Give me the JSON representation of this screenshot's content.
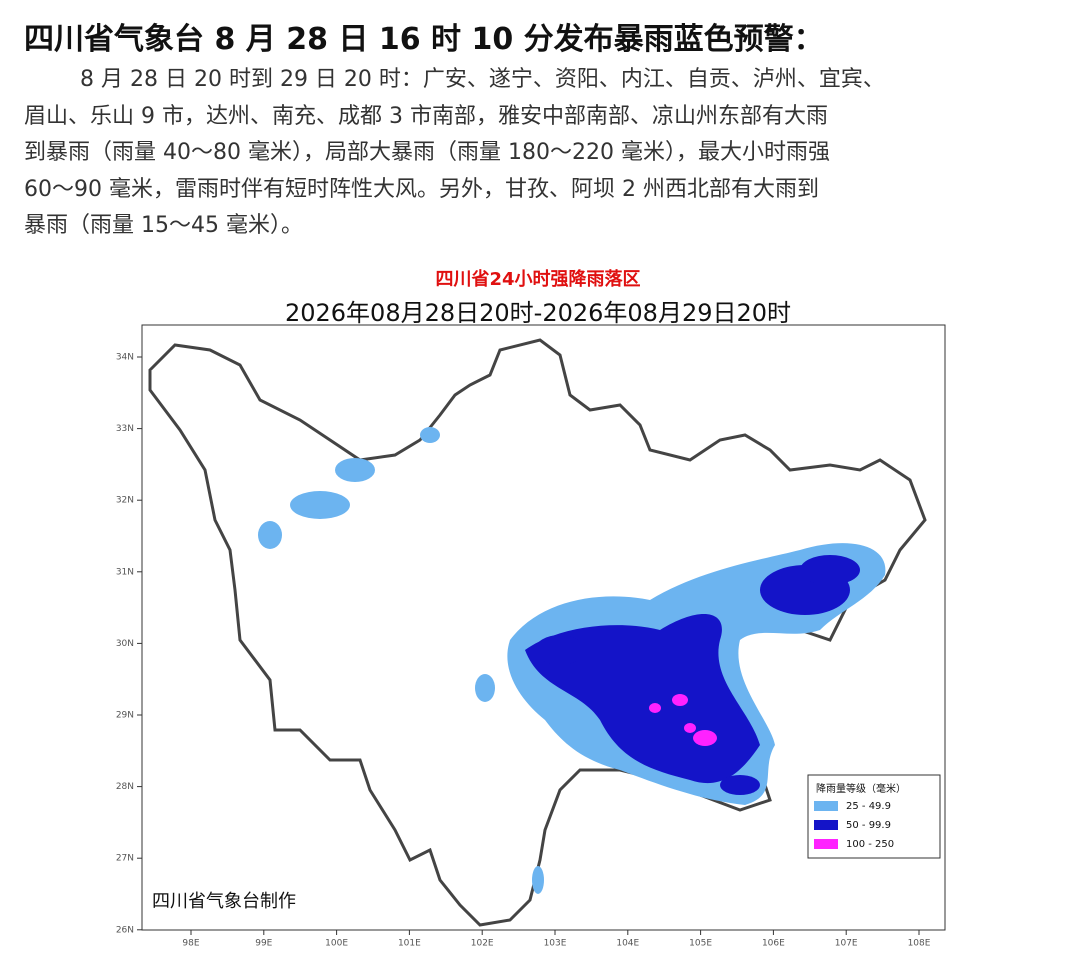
{
  "header": {
    "title": "四川省气象台 8 月 28 日 16 时 10 分发布暴雨蓝色预警："
  },
  "body": {
    "lines": [
      "8 月 28 日 20 时到 29 日 20 时：广安、遂宁、资阳、内江、自贡、泸州、宜宾、",
      "眉山、乐山 9 市，达州、南充、成都 3 市南部，雅安中部南部、凉山州东部有大雨",
      "到暴雨（雨量 40～80 毫米），局部大暴雨（雨量 180～220 毫米），最大小时雨强",
      "60～90 毫米，雷雨时伴有短时阵性大风。另外，甘孜、阿坝 2 州西北部有大雨到",
      "暴雨（雨量 15～45 毫米）。"
    ]
  },
  "map": {
    "title": "四川省24小时强降雨落区",
    "subtitle": "2026年08月28日20时-2026年08月29日20时",
    "lat_labels": [
      "34N",
      "33N",
      "32N",
      "31N",
      "30N",
      "29N",
      "28N",
      "27N",
      "26N"
    ],
    "lon_labels": [
      "98E",
      "99E",
      "100E",
      "101E",
      "102E",
      "103E",
      "104E",
      "105E",
      "106E",
      "107E",
      "108E"
    ],
    "legend": {
      "title": "降雨量等级（毫米）",
      "items": [
        {
          "label": "25 - 49.9",
          "color": "#6cb4f0"
        },
        {
          "label": "50 - 99.9",
          "color": "#1414c8"
        },
        {
          "label": "100 - 250",
          "color": "#ff22ff"
        }
      ]
    },
    "credit": "四川省气象台制作"
  }
}
